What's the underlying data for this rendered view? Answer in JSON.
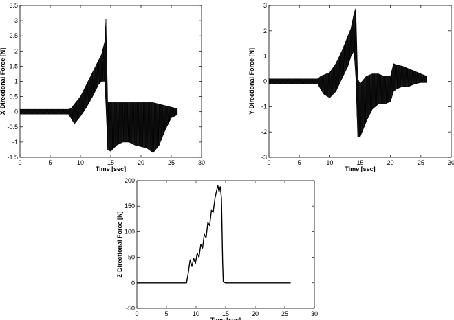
{
  "chart_data": [
    {
      "type": "line",
      "xlabel": "Time [sec]",
      "ylabel": "X-Directional Force [N]",
      "xlim": [
        0,
        30
      ],
      "ylim": [
        -1.5,
        3.5
      ],
      "xticks": [
        "0",
        "5",
        "10",
        "15",
        "20",
        "25",
        "30"
      ],
      "yticks": [
        "-1.5",
        "-1",
        "-0.5",
        "0",
        "0.5",
        "1",
        "1.5",
        "2",
        "2.5",
        "3",
        "3.5"
      ],
      "grid": false,
      "series": [
        {
          "color": "#000000",
          "x": [
            0,
            1,
            2,
            3,
            4,
            5,
            6,
            7,
            8,
            8.4,
            9,
            10,
            11,
            12,
            13,
            13.5,
            14,
            14.2,
            14.5,
            15,
            16,
            17,
            18,
            19,
            20,
            21,
            22,
            23,
            24,
            25,
            26
          ],
          "upper": [
            0.08,
            0.08,
            0.08,
            0.08,
            0.08,
            0.08,
            0.08,
            0.08,
            0.08,
            0.1,
            0.25,
            0.5,
            0.9,
            1.3,
            1.7,
            1.9,
            2.3,
            3.05,
            0.3,
            0.3,
            0.3,
            0.3,
            0.3,
            0.3,
            0.3,
            0.3,
            0.3,
            0.25,
            0.2,
            0.15,
            0.1
          ],
          "lower": [
            -0.08,
            -0.08,
            -0.08,
            -0.08,
            -0.08,
            -0.08,
            -0.08,
            -0.08,
            -0.08,
            -0.2,
            -0.4,
            -0.15,
            0.15,
            0.5,
            0.9,
            1.0,
            1.0,
            0.2,
            -1.25,
            -1.3,
            -1.1,
            -1.0,
            -1.0,
            -1.1,
            -1.15,
            -1.2,
            -1.35,
            -1.1,
            -0.6,
            -0.2,
            -0.1
          ]
        }
      ]
    },
    {
      "type": "line",
      "xlabel": "Time [sec]",
      "ylabel": "Y-Directional Force [N]",
      "xlim": [
        0,
        30
      ],
      "ylim": [
        -3,
        3
      ],
      "xticks": [
        "0",
        "5",
        "10",
        "15",
        "20",
        "25",
        "30"
      ],
      "yticks": [
        "-3",
        "-2",
        "-1",
        "0",
        "1",
        "2",
        "3"
      ],
      "grid": false,
      "series": [
        {
          "color": "#000000",
          "x": [
            0,
            1,
            2,
            3,
            4,
            5,
            6,
            7,
            8,
            8.5,
            9,
            10,
            11,
            12,
            13,
            13.5,
            14,
            14.3,
            14.6,
            15,
            16,
            17,
            18,
            19,
            20,
            20.5,
            21,
            22,
            23,
            24,
            25,
            26
          ],
          "upper": [
            0.1,
            0.1,
            0.1,
            0.1,
            0.1,
            0.1,
            0.1,
            0.1,
            0.1,
            0.2,
            0.25,
            0.35,
            0.7,
            1.2,
            1.8,
            2.1,
            2.7,
            2.9,
            0.1,
            -0.1,
            0.2,
            0.3,
            0.3,
            0.2,
            0.2,
            0.7,
            0.65,
            0.6,
            0.5,
            0.4,
            0.3,
            0.2
          ],
          "lower": [
            -0.1,
            -0.1,
            -0.1,
            -0.1,
            -0.1,
            -0.1,
            -0.1,
            -0.1,
            -0.1,
            -0.3,
            -0.5,
            -0.65,
            -0.4,
            0.1,
            0.6,
            1.0,
            1.2,
            0.1,
            -2.2,
            -2.2,
            -1.6,
            -1.1,
            -0.9,
            -0.9,
            -0.8,
            -0.4,
            -0.3,
            -0.2,
            -0.2,
            -0.1,
            -0.05,
            -0.05
          ]
        }
      ]
    },
    {
      "type": "line",
      "xlabel": "Time [sec]",
      "ylabel": "Z-Directional Force [N]",
      "xlim": [
        0,
        30
      ],
      "ylim": [
        -50,
        200
      ],
      "xticks": [
        "0",
        "5",
        "10",
        "15",
        "20",
        "25",
        "30"
      ],
      "yticks": [
        "-50",
        "0",
        "50",
        "100",
        "150",
        "200"
      ],
      "grid": false,
      "series": [
        {
          "color": "#000000",
          "x": [
            0,
            8.4,
            8.7,
            9.0,
            9.3,
            9.6,
            9.9,
            10.2,
            10.5,
            10.8,
            11.1,
            11.4,
            11.7,
            12.0,
            12.3,
            12.6,
            12.9,
            13.2,
            13.5,
            13.7,
            13.9,
            14.1,
            14.3,
            14.5,
            14.6,
            15,
            26
          ],
          "y": [
            0,
            0,
            20,
            45,
            32,
            48,
            38,
            58,
            50,
            75,
            68,
            95,
            88,
            118,
            112,
            142,
            138,
            165,
            182,
            190,
            178,
            188,
            165,
            40,
            2,
            0,
            0
          ]
        }
      ]
    }
  ]
}
